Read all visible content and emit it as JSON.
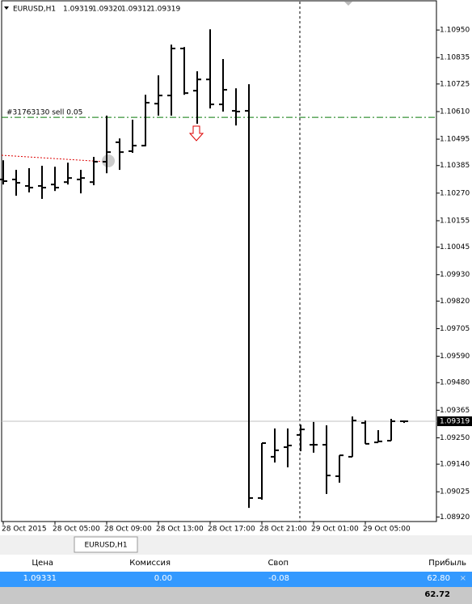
{
  "chart_data": {
    "type": "ohlc",
    "color": "#000000",
    "header": {
      "symbol": "EURUSD,H1",
      "ohlc_text": [
        "1.09319",
        "1.09320",
        "1.09312",
        "1.09319"
      ]
    },
    "categories": [
      "28 Oct 2015",
      null,
      null,
      null,
      "28 Oct 05:00",
      null,
      null,
      null,
      "28 Oct 09:00",
      null,
      null,
      null,
      "28 Oct 13:00",
      null,
      null,
      null,
      "28 Oct 17:00",
      null,
      null,
      null,
      "28 Oct 21:00",
      null,
      null,
      null,
      "29 Oct 01:00",
      null,
      null,
      null,
      "29 Oct 05:00",
      null,
      null,
      null
    ],
    "open": [
      1.10327,
      1.10327,
      1.103,
      1.103,
      1.10306,
      1.10316,
      1.10327,
      1.10316,
      1.10401,
      1.10482,
      1.10445,
      1.10468,
      1.10643,
      1.10677,
      1.10873,
      1.10697,
      1.10744,
      1.1064,
      1.10613,
      1.10613,
      1.08999,
      1.09171,
      1.09211,
      1.09262,
      1.09221,
      1.09221,
      1.0909,
      1.09171,
      1.09312,
      1.09231,
      1.09238,
      1.09319
    ],
    "high": [
      1.10407,
      1.10367,
      1.10374,
      1.10384,
      1.1038,
      1.10397,
      1.10367,
      1.10421,
      1.10593,
      1.10498,
      1.10576,
      1.1068,
      1.10761,
      1.10889,
      1.10879,
      1.10778,
      1.10953,
      1.10829,
      1.10707,
      1.10724,
      1.09228,
      1.09289,
      1.09289,
      1.09305,
      1.09316,
      1.09302,
      1.09177,
      1.09339,
      1.09322,
      1.09282,
      1.09329,
      1.0932
    ],
    "low": [
      1.10306,
      1.10259,
      1.10273,
      1.10246,
      1.10279,
      1.10306,
      1.10269,
      1.10303,
      1.10353,
      1.10367,
      1.10438,
      1.10465,
      1.10593,
      1.10593,
      1.1068,
      1.10559,
      1.10623,
      1.1061,
      1.10552,
      1.08958,
      1.08992,
      1.09147,
      1.09127,
      1.09194,
      1.09188,
      1.09016,
      1.09063,
      1.09171,
      1.09225,
      1.09231,
      1.09238,
      1.09312
    ],
    "close": [
      1.1032,
      1.10313,
      1.10293,
      1.10293,
      1.10293,
      1.10333,
      1.10333,
      1.10401,
      1.10441,
      1.10441,
      1.10468,
      1.10647,
      1.10677,
      1.10873,
      1.10687,
      1.10744,
      1.1064,
      1.10701,
      1.1061,
      1.08999,
      1.09228,
      1.09198,
      1.09218,
      1.09285,
      1.09221,
      1.09093,
      1.09177,
      1.09322,
      1.09225,
      1.09235,
      1.09319,
      1.09319
    ],
    "ylim": [
      1.08901,
      1.11065
    ],
    "yticks": [
      {
        "value": 1.1095,
        "label": "1.10950"
      },
      1.10835,
      1.10725,
      {
        "value": 1.1061,
        "label": "1.10610"
      },
      1.10495,
      1.10385,
      {
        "value": 1.1027,
        "label": "1.10270"
      },
      1.10155,
      1.10045,
      {
        "value": 1.0993,
        "label": "1.09930"
      },
      {
        "value": 1.0982,
        "label": "1.09820"
      },
      1.09705,
      {
        "value": 1.0959,
        "label": "1.09590"
      },
      {
        "value": 1.0948,
        "label": "1.09480"
      },
      1.09365,
      {
        "value": 1.0925,
        "label": "1.09250"
      },
      {
        "value": 1.0914,
        "label": "1.09140"
      },
      1.09025,
      {
        "value": 1.0892,
        "label": "1.08920"
      }
    ],
    "last_price": 1.09319,
    "order_line": {
      "label": "#31763130 sell 0.05",
      "value": 1.10586
    }
  },
  "terminal": {
    "tab": "EURUSD,H1",
    "columns": [
      "Цена",
      "Комиссия",
      "Своп",
      "Прибыль"
    ],
    "row": [
      "1.09331",
      "0.00",
      "-0.08",
      "62.80"
    ],
    "total": "62.72"
  }
}
